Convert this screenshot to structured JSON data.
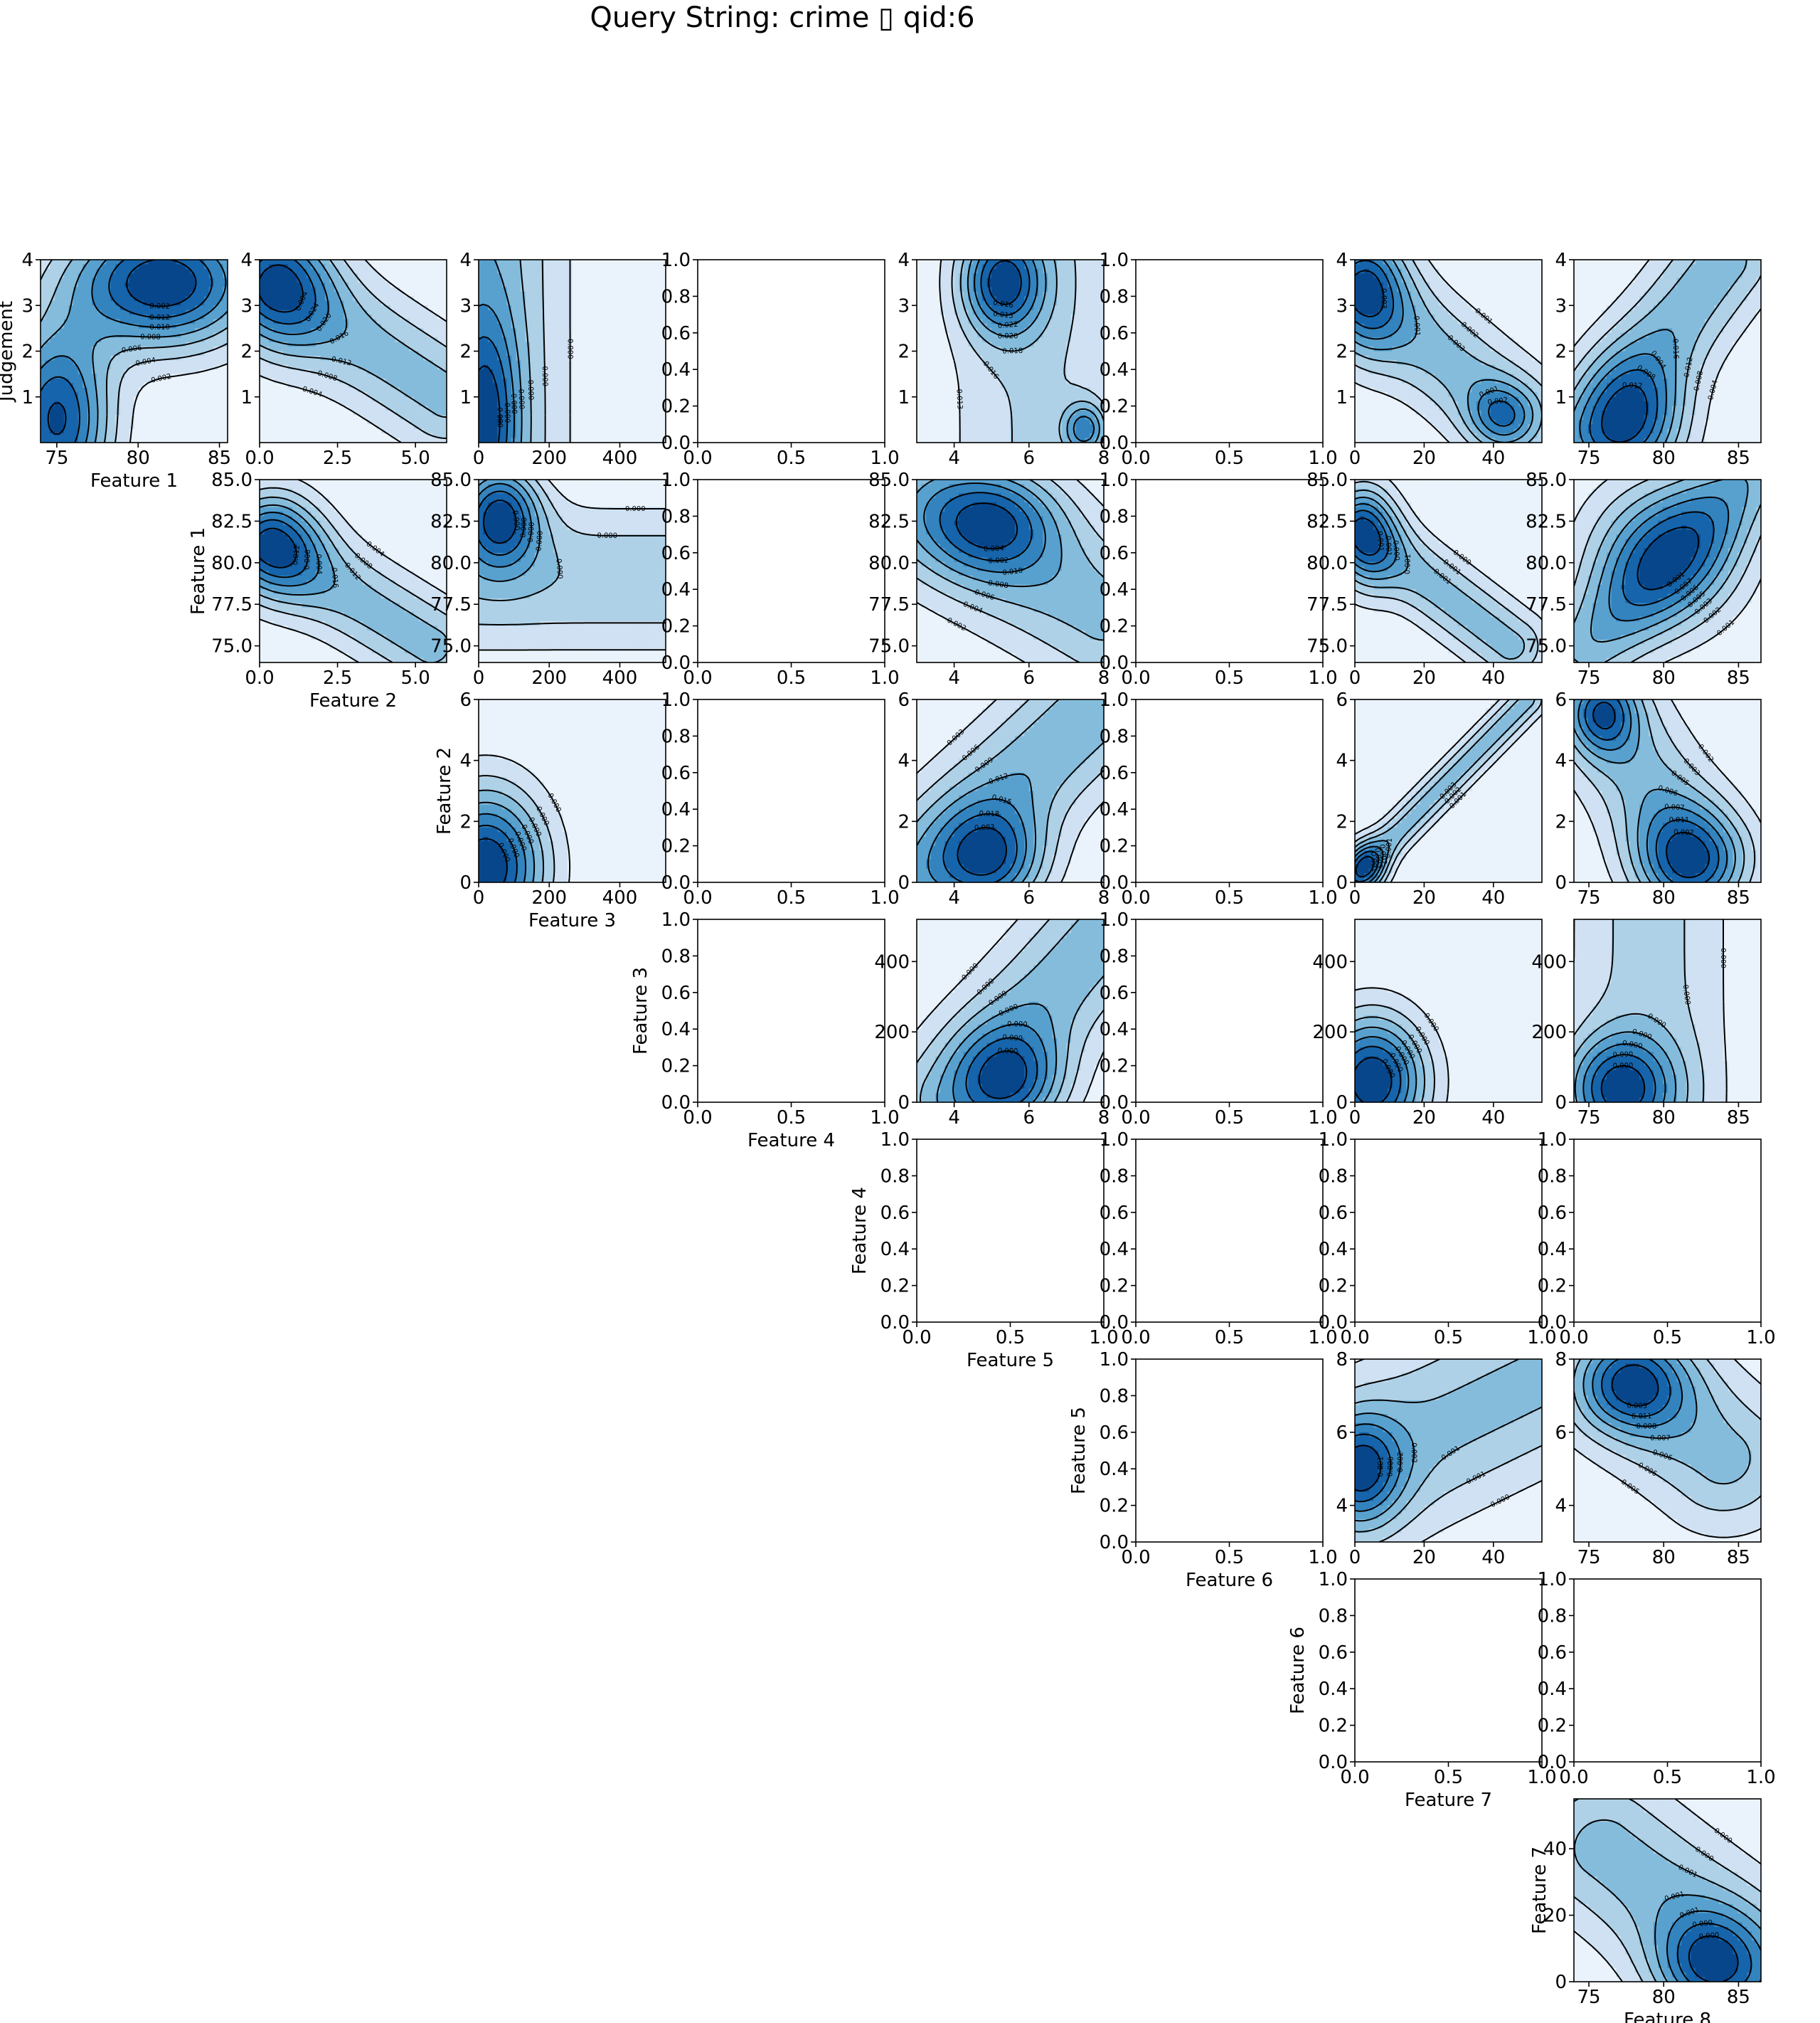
{
  "title": "Query String: crime ▯ qid:6",
  "colors": [
    "#eaf3fb",
    "#cfe1f2",
    "#aed1e7",
    "#85bcdc",
    "#58a1cf",
    "#3383be",
    "#1664ab",
    "#08468b"
  ],
  "chart_data": {
    "type": "contour_matrix",
    "rows": [
      {
        "ylabel": "Judgement",
        "yrange": [
          0,
          4
        ],
        "yticks": [
          [
            "1",
            1
          ],
          [
            "2",
            2
          ],
          [
            "3",
            3
          ],
          [
            "4",
            4
          ]
        ],
        "xlabel": "Feature 1",
        "xlabel_col": 0
      },
      {
        "ylabel": "Feature 1",
        "yrange": [
          74,
          85
        ],
        "yticks": [
          [
            "75.0",
            75
          ],
          [
            "77.5",
            77.5
          ],
          [
            "80.0",
            80
          ],
          [
            "82.5",
            82.5
          ],
          [
            "85.0",
            85
          ]
        ],
        "xlabel": "Feature 2",
        "xlabel_col": 1
      },
      {
        "ylabel": "Feature 2",
        "yrange": [
          0,
          6
        ],
        "yticks": [
          [
            "0",
            0
          ],
          [
            "2",
            2
          ],
          [
            "4",
            4
          ],
          [
            "6",
            6
          ]
        ],
        "xlabel": "Feature 3",
        "xlabel_col": 2
      },
      {
        "ylabel": "Feature 3",
        "yrange": [
          0,
          520
        ],
        "yticks": [
          [
            "0",
            0
          ],
          [
            "200",
            200
          ],
          [
            "400",
            400
          ]
        ],
        "xlabel": "Feature 4",
        "xlabel_col": 3
      },
      {
        "ylabel": "Feature 4",
        "yrange": [
          0,
          1
        ],
        "yticks": [],
        "xlabel": "Feature 5",
        "xlabel_col": 4
      },
      {
        "ylabel": "Feature 5",
        "yrange": [
          3,
          8
        ],
        "yticks": [
          [
            "4",
            4
          ],
          [
            "6",
            6
          ],
          [
            "8",
            8
          ]
        ],
        "xlabel": "Feature 6",
        "xlabel_col": 5
      },
      {
        "ylabel": "Feature 6",
        "yrange": [
          0,
          1
        ],
        "yticks": [],
        "xlabel": "Feature 7",
        "xlabel_col": 6
      },
      {
        "ylabel": "Feature 7",
        "yrange": [
          0,
          55
        ],
        "yticks": [
          [
            "0",
            0
          ],
          [
            "20",
            20
          ],
          [
            "40",
            40
          ]
        ],
        "xlabel": "Feature 8",
        "xlabel_col": 7
      }
    ],
    "columns": [
      {
        "name": "Feature 1",
        "xrange": [
          74,
          85.5
        ],
        "xticks": [
          [
            "75",
            75
          ],
          [
            "80",
            80
          ],
          [
            "85",
            85
          ]
        ]
      },
      {
        "name": "Feature 2",
        "xrange": [
          0,
          6
        ],
        "xticks": [
          [
            "0.0",
            0
          ],
          [
            "2.5",
            2.5
          ],
          [
            "5.0",
            5
          ]
        ]
      },
      {
        "name": "Feature 3",
        "xrange": [
          0,
          530
        ],
        "xticks": [
          [
            "0",
            0
          ],
          [
            "200",
            200
          ],
          [
            "400",
            400
          ]
        ]
      },
      {
        "name": "Feature 4",
        "xrange": [
          0,
          1
        ],
        "xticks": []
      },
      {
        "name": "Feature 5",
        "xrange": [
          3,
          8
        ],
        "xticks": [
          [
            "4",
            4
          ],
          [
            "6",
            6
          ],
          [
            "8",
            8
          ]
        ]
      },
      {
        "name": "Feature 6",
        "xrange": [
          0,
          1
        ],
        "xticks": []
      },
      {
        "name": "Feature 7",
        "xrange": [
          0,
          54
        ],
        "xticks": [
          [
            "0",
            0
          ],
          [
            "20",
            20
          ],
          [
            "40",
            40
          ]
        ]
      },
      {
        "name": "Feature 8",
        "xrange": [
          74,
          86.5
        ],
        "xticks": [
          [
            "75",
            75
          ],
          [
            "80",
            80
          ],
          [
            "85",
            85
          ]
        ]
      }
    ],
    "unit_ticks": [
      [
        "0.0",
        0
      ],
      [
        "0.2",
        0.2
      ],
      [
        "0.4",
        0.4
      ],
      [
        "0.6",
        0.6
      ],
      [
        "0.8",
        0.8
      ],
      [
        "1.0",
        1
      ]
    ],
    "unit_xticks": [
      [
        "0.0",
        0
      ],
      [
        "0.5",
        0.5
      ],
      [
        "1.0",
        1
      ]
    ],
    "panels": [
      {
        "row": 0,
        "col": 0,
        "kind": "contour",
        "peaks": [
          [
            81.5,
            3.5,
            1,
            0.35,
            0.25
          ],
          [
            75,
            0.5,
            0.9,
            0.2,
            0.35
          ]
        ],
        "base": 0.08,
        "labels": [
          "0.002",
          "0.004",
          "0.006",
          "0.008",
          "0.010",
          "0.012"
        ]
      },
      {
        "row": 0,
        "col": 1,
        "kind": "contour",
        "peaks": [
          [
            0.6,
            3.4,
            1,
            0.2,
            0.25
          ]
        ],
        "ridge": [
          0.6,
          3.4,
          6,
          1.0,
          0.22
        ],
        "base": 0.05,
        "labels": [
          "0.004",
          "0.008",
          "0.012",
          "0.016",
          "0.020",
          "0.024"
        ]
      },
      {
        "row": 0,
        "col": 2,
        "kind": "contour",
        "peaks": [
          [
            20,
            0.5,
            1,
            0.12,
            0.4
          ]
        ],
        "xband": [
          0,
          0.3,
          0.9
        ],
        "base": 0.12,
        "labels": [
          "0.000",
          "0.000",
          "0.000",
          "0.000"
        ]
      },
      {
        "row": 0,
        "col": 3,
        "kind": "empty"
      },
      {
        "row": 0,
        "col": 4,
        "kind": "contour",
        "peaks": [
          [
            5.3,
            3.5,
            1,
            0.15,
            0.2
          ],
          [
            7.5,
            0.3,
            0.7,
            0.08,
            0.1
          ]
        ],
        "xband": [
          6.2,
          0.45,
          0.55
        ],
        "base": 0.12,
        "labels": [
          "0.013",
          "0.016",
          "0.018",
          "0.020",
          "0.022"
        ]
      },
      {
        "row": 0,
        "col": 5,
        "kind": "empty"
      },
      {
        "row": 0,
        "col": 6,
        "kind": "contour",
        "peaks": [
          [
            3,
            3.3,
            1,
            0.15,
            0.25
          ],
          [
            42,
            0.6,
            0.7,
            0.12,
            0.12
          ]
        ],
        "ridge": [
          3,
          3.3,
          45,
          0.6,
          0.2
        ],
        "base": 0.08,
        "labels": [
          "0.001",
          "0.002",
          "0.003",
          "0.001"
        ]
      },
      {
        "row": 0,
        "col": 7,
        "kind": "contour",
        "peaks": [
          [
            78,
            0.4,
            1,
            0.2,
            0.25
          ]
        ],
        "ridge": [
          75.5,
          0.3,
          84,
          4,
          0.2
        ],
        "base": 0.05,
        "labels": [
          "0.004",
          "0.008",
          "0.012",
          "0.016"
        ]
      },
      {
        "row": 1,
        "col": 1,
        "kind": "contour",
        "peaks": [
          [
            0.5,
            81,
            1,
            0.18,
            0.2
          ]
        ],
        "ridge": [
          0.3,
          81,
          5.5,
          75,
          0.18
        ],
        "base": 0.02,
        "labels": [
          "0.004",
          "0.008",
          "0.012",
          "0.016"
        ]
      },
      {
        "row": 1,
        "col": 2,
        "kind": "contour",
        "peaks": [
          [
            60,
            83,
            1,
            0.15,
            0.2
          ]
        ],
        "yband": [
          79,
          0.35,
          0.6
        ],
        "base": 0.2,
        "labels": [
          "0.000",
          "0.000",
          "0.000",
          "0.000"
        ]
      },
      {
        "row": 1,
        "col": 3,
        "kind": "empty"
      },
      {
        "row": 1,
        "col": 4,
        "kind": "contour",
        "peaks": [
          [
            5,
            82.5,
            1,
            0.25,
            0.2
          ]
        ],
        "ridge": [
          3.5,
          83,
          8,
          77,
          0.3
        ],
        "base": 0.15,
        "labels": [
          "0.002",
          "0.004",
          "0.006",
          "0.008",
          "0.010"
        ]
      },
      {
        "row": 1,
        "col": 5,
        "kind": "empty"
      },
      {
        "row": 1,
        "col": 6,
        "kind": "contour",
        "peaks": [
          [
            3,
            81.5,
            1,
            0.12,
            0.2
          ]
        ],
        "ridge": [
          1,
          82,
          45,
          75,
          0.14
        ],
        "base": 0.05,
        "labels": [
          "0.000",
          "0.001",
          "0.001",
          "0.001"
        ]
      },
      {
        "row": 1,
        "col": 7,
        "kind": "contour",
        "peaks": [
          [
            80,
            80.5,
            1,
            0.3,
            0.3
          ]
        ],
        "ridge": [
          75,
          75,
          86,
          85.5,
          0.18
        ],
        "base": 0.05,
        "labels": [
          "0.001",
          "0.002",
          "0.003",
          "0.005",
          "0.006",
          "0.007"
        ]
      },
      {
        "row": 2,
        "col": 2,
        "kind": "contour",
        "peaks": [
          [
            20,
            0.5,
            1,
            0.22,
            0.3
          ]
        ],
        "base": 0.13,
        "labels": [
          "0.000",
          "0.000",
          "0.000",
          "0.000"
        ]
      },
      {
        "row": 2,
        "col": 3,
        "kind": "empty"
      },
      {
        "row": 2,
        "col": 4,
        "kind": "contour",
        "peaks": [
          [
            5,
            0.7,
            1,
            0.2,
            0.2
          ]
        ],
        "ridge": [
          3,
          0.2,
          8,
          6,
          0.25
        ],
        "base": 0.1,
        "labels": [
          "0.003",
          "0.006",
          "0.009",
          "0.012",
          "0.015",
          "0.018"
        ]
      },
      {
        "row": 2,
        "col": 5,
        "kind": "empty"
      },
      {
        "row": 2,
        "col": 6,
        "kind": "contour",
        "peaks": [
          [
            3,
            0.5,
            1,
            0.08,
            0.1
          ]
        ],
        "ridge": [
          0,
          0.2,
          50,
          6,
          0.07
        ],
        "base": 0.05,
        "labels": [
          "0.001",
          "0.002",
          "0.003"
        ]
      },
      {
        "row": 2,
        "col": 7,
        "kind": "contour",
        "peaks": [
          [
            81.5,
            0.8,
            1,
            0.2,
            0.2
          ],
          [
            76,
            5.5,
            0.9,
            0.12,
            0.15
          ]
        ],
        "ridge": [
          76,
          5.5,
          82,
          0.8,
          0.22
        ],
        "base": 0.08,
        "labels": [
          "0.002",
          "0.003",
          "0.005",
          "0.006",
          "0.007",
          "0.011"
        ]
      },
      {
        "row": 3,
        "col": 3,
        "kind": "empty"
      },
      {
        "row": 3,
        "col": 4,
        "kind": "contour",
        "peaks": [
          [
            5.5,
            60,
            1,
            0.2,
            0.2
          ]
        ],
        "ridge": [
          4,
          0,
          8,
          480,
          0.25
        ],
        "base": 0.05,
        "labels": [
          "0.000",
          "0.000",
          "0.000",
          "0.000",
          "0.000"
        ]
      },
      {
        "row": 3,
        "col": 5,
        "kind": "empty"
      },
      {
        "row": 3,
        "col": 6,
        "kind": "contour",
        "peaks": [
          [
            5,
            60,
            1,
            0.2,
            0.25
          ]
        ],
        "base": 0.18,
        "labels": [
          "0.000",
          "0.000",
          "0.000",
          "0.000",
          "0.000"
        ]
      },
      {
        "row": 3,
        "col": 7,
        "kind": "contour",
        "peaks": [
          [
            77,
            40,
            1,
            0.2,
            0.2
          ]
        ],
        "xband": [
          79,
          0.4,
          0.6
        ],
        "base": 0.2,
        "labels": [
          "0.000",
          "0.000",
          "0.000",
          "0.000"
        ]
      },
      {
        "row": 4,
        "col": 4,
        "kind": "empty"
      },
      {
        "row": 4,
        "col": 5,
        "kind": "empty"
      },
      {
        "row": 4,
        "col": 6,
        "kind": "empty"
      },
      {
        "row": 4,
        "col": 7,
        "kind": "empty"
      },
      {
        "row": 5,
        "col": 5,
        "kind": "empty"
      },
      {
        "row": 5,
        "col": 6,
        "kind": "contour",
        "peaks": [
          [
            2,
            5,
            1,
            0.15,
            0.2
          ]
        ],
        "ridge": [
          0,
          5,
          54,
          7.5,
          0.35
        ],
        "base": 0.1,
        "labels": [
          "0.000",
          "0.001",
          "0.001",
          "0.002",
          "0.002"
        ]
      },
      {
        "row": 5,
        "col": 7,
        "kind": "contour",
        "peaks": [
          [
            78,
            7.3,
            1,
            0.2,
            0.18
          ]
        ],
        "ridge": [
          78,
          7.3,
          84,
          5.3,
          0.28
        ],
        "base": 0.3,
        "labels": [
          "0.005",
          "0.006",
          "0.006",
          "0.007",
          "0.008",
          "0.011"
        ]
      },
      {
        "row": 6,
        "col": 6,
        "kind": "empty"
      },
      {
        "row": 6,
        "col": 7,
        "kind": "empty"
      },
      {
        "row": 7,
        "col": 7,
        "kind": "contour",
        "peaks": [
          [
            83,
            5,
            1,
            0.2,
            0.2
          ]
        ],
        "ridge": [
          76,
          40,
          86,
          5,
          0.3
        ],
        "base": 0.12,
        "labels": [
          "0.000",
          "0.000",
          "0.001",
          "0.001",
          "0.001"
        ]
      }
    ]
  }
}
